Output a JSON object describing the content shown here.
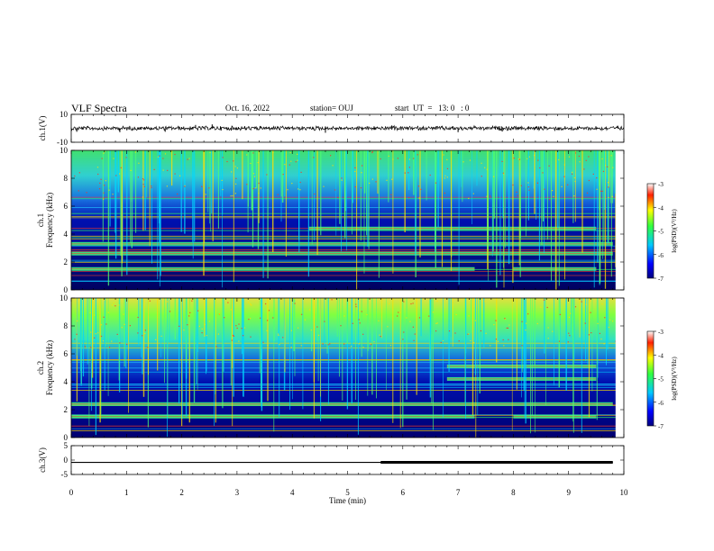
{
  "header": {
    "title": "VLF Spectra",
    "date": "Oct. 16, 2022",
    "station": "station= OUJ",
    "start_ut": "start  UT  =   13: 0   : 0"
  },
  "chart_data": [
    {
      "type": "line",
      "ylabel": "ch.1(V)",
      "xlim": [
        0,
        10
      ],
      "ylim": [
        -10,
        10
      ],
      "yticks": [
        "10",
        "-10"
      ],
      "series": [
        {
          "values": [
            {
              "x": 0.1,
              "y": -2.5
            },
            {
              "x": 0.88,
              "y": -2.8
            },
            {
              "x": 1.7,
              "y": -2.5
            },
            {
              "x": 2.25,
              "y": 2.4
            },
            {
              "x": 2.55,
              "y": 2.8
            },
            {
              "x": 4.6,
              "y": -3.2
            },
            {
              "x": 5.8,
              "y": 2.0
            },
            {
              "x": 7.0,
              "y": -2.8
            },
            {
              "x": 7.8,
              "y": -2.3
            }
          ]
        }
      ]
    },
    {
      "type": "heatmap",
      "ylabel": "ch.1\nFrequency  (kHz)",
      "xlim": [
        0,
        10
      ],
      "ylim": [
        0,
        10
      ],
      "yticks": [
        "0",
        "2",
        "4",
        "6",
        "8",
        "10"
      ],
      "colorbar": {
        "label": "log(PSD)(V²/Hz)",
        "ticks": [
          "-3",
          "-4",
          "-5",
          "-6",
          "-7"
        ],
        "range": [
          -7,
          -3
        ]
      },
      "bands_khz": [
        {
          "f": 1.5,
          "x0": 0.0,
          "x1": 7.3
        },
        {
          "f": 1.5,
          "x0": 8.0,
          "x1": 9.5
        },
        {
          "f": 4.4,
          "x0": 4.3,
          "x1": 9.5
        },
        {
          "f": 2.6,
          "x0": 0.0,
          "x1": 9.8
        },
        {
          "f": 3.3,
          "x0": 0.0,
          "x1": 9.8
        }
      ]
    },
    {
      "type": "heatmap",
      "ylabel": "ch.2\nFrequency  (kHz)",
      "xlim": [
        0,
        10
      ],
      "ylim": [
        0,
        10
      ],
      "yticks": [
        "0",
        "2",
        "4",
        "6",
        "8",
        "10"
      ],
      "colorbar": {
        "label": "log(PSD)(V²/Hz)",
        "ticks": [
          "-3",
          "-4",
          "-5",
          "-6",
          "-7"
        ],
        "range": [
          -7,
          -3
        ]
      },
      "bands_khz": [
        {
          "f": 1.5,
          "x0": 0.0,
          "x1": 7.3
        },
        {
          "f": 1.5,
          "x0": 8.0,
          "x1": 9.5
        },
        {
          "f": 5.1,
          "x0": 6.8,
          "x1": 9.5
        },
        {
          "f": 4.2,
          "x0": 6.8,
          "x1": 9.5
        },
        {
          "f": 2.4,
          "x0": 0.0,
          "x1": 9.8
        }
      ]
    },
    {
      "type": "line",
      "ylabel": "ch.3(V)",
      "xlabel": "Time  (min)",
      "xlim": [
        0,
        10
      ],
      "ylim": [
        -5,
        5
      ],
      "xticks": [
        "0",
        "1",
        "2",
        "3",
        "4",
        "5",
        "6",
        "7",
        "8",
        "9",
        "10"
      ],
      "yticks": [
        "5",
        "0",
        "-5"
      ],
      "series": [
        {
          "values": [
            {
              "x": 0,
              "y": -0.8
            },
            {
              "x": 9.8,
              "y": -0.8
            }
          ]
        }
      ]
    }
  ],
  "colors": {
    "ink": "#000000",
    "low": "#00007f",
    "mid": "#00c0ff",
    "high_green": "#40ff60",
    "high": "#ff2000"
  }
}
